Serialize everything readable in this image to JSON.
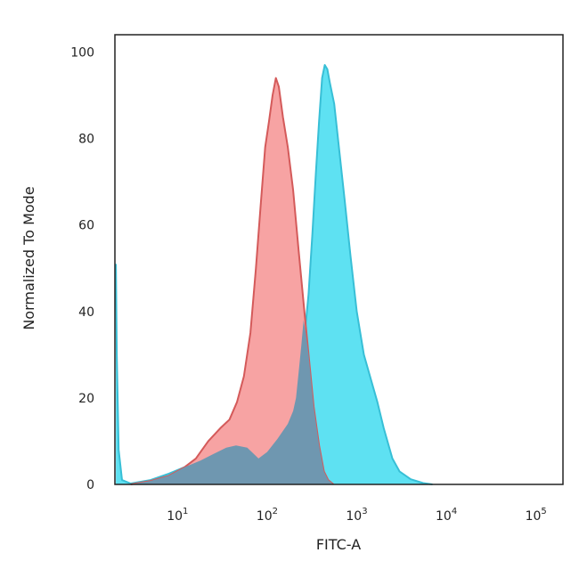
{
  "chart_data": {
    "type": "area",
    "xlabel": "FITC-A",
    "ylabel": "Normalized To Mode",
    "x_scale": "log",
    "xlim": [
      2,
      200000
    ],
    "ylim": [
      0,
      104
    ],
    "y_ticks": [
      0,
      20,
      40,
      60,
      80,
      100
    ],
    "x_ticks": [
      {
        "value": 10,
        "base": "10",
        "exp": "1"
      },
      {
        "value": 100,
        "base": "10",
        "exp": "2"
      },
      {
        "value": 1000,
        "base": "10",
        "exp": "3"
      },
      {
        "value": 10000,
        "base": "10",
        "exp": "4"
      },
      {
        "value": 100000,
        "base": "10",
        "exp": "5"
      }
    ],
    "grid": false,
    "legend": "none",
    "series": [
      {
        "color": "#5ee1f2",
        "stroke": "#38bfd6",
        "points": [
          [
            2.05,
            51
          ],
          [
            2.1,
            30
          ],
          [
            2.2,
            8
          ],
          [
            2.4,
            1
          ],
          [
            3,
            0.2
          ],
          [
            5,
            1
          ],
          [
            8,
            2.5
          ],
          [
            12,
            4
          ],
          [
            18,
            5.5
          ],
          [
            25,
            7
          ],
          [
            35,
            8.5
          ],
          [
            45,
            9
          ],
          [
            60,
            8.5
          ],
          [
            80,
            6
          ],
          [
            100,
            7.5
          ],
          [
            130,
            10.5
          ],
          [
            170,
            14
          ],
          [
            210,
            20
          ],
          [
            250,
            30
          ],
          [
            290,
            44
          ],
          [
            320,
            58
          ],
          [
            350,
            72
          ],
          [
            380,
            84
          ],
          [
            410,
            94
          ],
          [
            440,
            97
          ],
          [
            470,
            96
          ],
          [
            500,
            93
          ],
          [
            560,
            88
          ],
          [
            640,
            77
          ],
          [
            730,
            66
          ],
          [
            850,
            53
          ],
          [
            1000,
            40
          ],
          [
            1200,
            30
          ],
          [
            1450,
            24
          ],
          [
            1700,
            19
          ],
          [
            2000,
            13
          ],
          [
            2500,
            6
          ],
          [
            3000,
            3
          ],
          [
            4000,
            1.2
          ],
          [
            5500,
            0.3
          ],
          [
            7000,
            0
          ]
        ]
      },
      {
        "color": "#f7a3a3",
        "stroke": "#d45a5a",
        "points": [
          [
            3,
            0
          ],
          [
            5,
            0.8
          ],
          [
            8,
            2
          ],
          [
            12,
            4
          ],
          [
            16,
            6
          ],
          [
            22,
            10
          ],
          [
            30,
            13
          ],
          [
            38,
            15
          ],
          [
            46,
            19
          ],
          [
            55,
            25
          ],
          [
            65,
            35
          ],
          [
            75,
            50
          ],
          [
            85,
            65
          ],
          [
            95,
            78
          ],
          [
            105,
            84
          ],
          [
            115,
            90
          ],
          [
            125,
            94
          ],
          [
            135,
            92
          ],
          [
            150,
            85
          ],
          [
            170,
            78
          ],
          [
            195,
            68
          ],
          [
            225,
            54
          ],
          [
            255,
            42
          ],
          [
            290,
            30
          ],
          [
            330,
            18
          ],
          [
            380,
            9
          ],
          [
            430,
            3
          ],
          [
            480,
            1
          ],
          [
            550,
            0
          ]
        ]
      },
      {
        "color": "#6f97b0",
        "points": [
          [
            3,
            0
          ],
          [
            5,
            0.8
          ],
          [
            8,
            2
          ],
          [
            12,
            4
          ],
          [
            18,
            5.5
          ],
          [
            25,
            7
          ],
          [
            35,
            8.5
          ],
          [
            45,
            9
          ],
          [
            60,
            8.5
          ],
          [
            80,
            6
          ],
          [
            100,
            7.5
          ],
          [
            130,
            10.5
          ],
          [
            170,
            14
          ],
          [
            195,
            17
          ],
          [
            210,
            20
          ],
          [
            225,
            26
          ],
          [
            240,
            32
          ],
          [
            255,
            38
          ],
          [
            270,
            35
          ],
          [
            290,
            30
          ],
          [
            330,
            18
          ],
          [
            380,
            9
          ],
          [
            430,
            3
          ],
          [
            480,
            1
          ],
          [
            550,
            0
          ]
        ]
      }
    ]
  }
}
